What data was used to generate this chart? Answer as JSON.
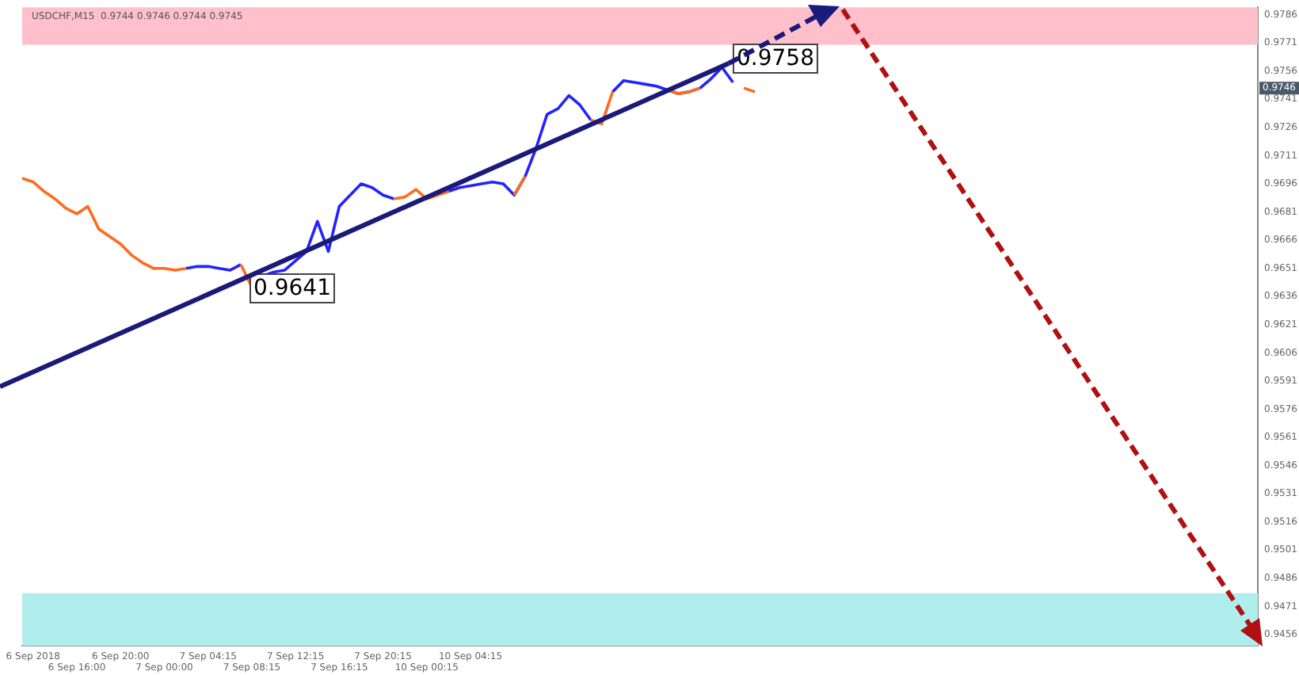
{
  "chart_data": {
    "type": "line",
    "title": "USDCHF,M15  0.9744 0.9746 0.9744 0.9745",
    "categories": [
      null,
      "6 Sep 2018",
      null,
      null,
      null,
      "6 Sep 16:00",
      null,
      null,
      null,
      "6 Sep 20:00",
      null,
      null,
      null,
      "7 Sep 00:00",
      null,
      null,
      null,
      "7 Sep 04:15",
      null,
      null,
      null,
      "7 Sep 08:15",
      null,
      null,
      null,
      "7 Sep 12:15",
      null,
      null,
      null,
      "7 Sep 16:15",
      null,
      null,
      null,
      "7 Sep 20:15",
      null,
      null,
      null,
      "10 Sep 00:15",
      null,
      null,
      null,
      "10 Sep 04:15",
      null,
      null,
      null,
      null,
      null,
      null,
      null,
      null,
      null,
      null,
      null,
      null,
      null,
      null,
      null,
      null,
      null,
      null,
      null,
      null,
      null,
      null,
      null,
      null,
      null,
      null,
      null,
      null,
      null,
      null,
      null,
      null,
      null,
      null,
      null,
      null,
      null,
      null,
      null,
      null,
      null,
      null,
      null,
      null,
      null,
      null,
      null,
      null,
      null,
      null,
      null,
      null,
      null,
      null,
      null,
      null,
      null,
      null,
      null,
      null,
      null,
      null,
      null,
      null,
      null,
      null,
      null,
      null,
      null,
      null,
      null,
      null
    ],
    "series": [
      {
        "color": "#ff6a1f",
        "values": [
          0.9699,
          0.9697,
          0.9692,
          0.9688,
          0.9683,
          0.968,
          0.9684,
          0.9672,
          0.9668,
          0.9664,
          0.9658,
          0.9654,
          0.9651,
          0.9651,
          0.965,
          0.9651,
          null,
          null,
          null,
          null,
          0.9653,
          0.9641,
          null,
          null,
          null,
          null,
          null,
          null,
          null,
          null,
          null,
          null,
          null,
          null,
          0.9688,
          0.9689,
          0.9693,
          0.9688,
          0.969,
          0.9692,
          null,
          null,
          null,
          null,
          null,
          0.969,
          0.97,
          null,
          null,
          null,
          null,
          null,
          0.973,
          0.9728,
          0.9745,
          null,
          null,
          null,
          null,
          0.9746,
          0.9744,
          0.9745,
          0.9747,
          null,
          null,
          null,
          0.9747,
          0.9745,
          null,
          null,
          null,
          null,
          null,
          null,
          null,
          null,
          null,
          null,
          null,
          null,
          null,
          null,
          null,
          null,
          null,
          null,
          null,
          null,
          null,
          null,
          null,
          null,
          null,
          null,
          null,
          null,
          null,
          null,
          null,
          null,
          null,
          null,
          null,
          null,
          null,
          null,
          null,
          null,
          null,
          null,
          null,
          null,
          null,
          null
        ]
      },
      {
        "color": "#2323ff",
        "values": [
          null,
          null,
          null,
          null,
          null,
          null,
          null,
          null,
          null,
          null,
          null,
          null,
          null,
          null,
          null,
          0.9651,
          0.9652,
          0.9652,
          0.9651,
          0.965,
          0.9653,
          null,
          0.9647,
          0.9649,
          0.965,
          0.9655,
          0.966,
          0.9676,
          0.966,
          0.9684,
          0.969,
          0.9696,
          0.9694,
          0.969,
          0.9688,
          null,
          null,
          null,
          null,
          0.9692,
          0.9694,
          0.9695,
          0.9696,
          0.9697,
          0.9696,
          0.969,
          0.97,
          0.9715,
          0.9733,
          0.9736,
          0.9743,
          0.9738,
          0.973,
          null,
          0.9745,
          0.9751,
          0.975,
          0.9749,
          0.9748,
          0.9746,
          0.9744,
          0.9745,
          0.9747,
          0.9752,
          0.9758,
          0.975,
          null,
          null,
          null,
          null,
          null,
          null,
          null,
          null,
          null,
          null,
          null,
          null,
          null,
          null,
          null,
          null,
          null,
          null,
          null,
          null,
          null,
          null,
          null,
          null,
          null,
          null,
          null,
          null,
          null,
          null,
          null,
          null,
          null,
          null,
          null,
          null,
          null,
          null,
          null,
          null,
          null,
          null,
          null,
          null,
          null,
          null,
          null,
          null
        ]
      }
    ],
    "ylim": [
      0.945,
      0.979
    ],
    "yticks": [
      0.9456,
      0.9471,
      0.9486,
      0.9501,
      0.9516,
      0.9531,
      0.9546,
      0.9561,
      0.9576,
      0.9591,
      0.9606,
      0.9621,
      0.9636,
      0.9651,
      0.9666,
      0.9681,
      0.9696,
      0.9711,
      0.9726,
      0.9741,
      0.9756,
      0.9771,
      0.9786
    ],
    "bands": [
      {
        "axis": "y",
        "from": 0.977,
        "to": 0.979,
        "color": "#ffc0cb"
      },
      {
        "axis": "y",
        "from": 0.945,
        "to": 0.9478,
        "color": "#b0eeee"
      }
    ],
    "annotations": [
      "0.9641",
      "0.9758",
      "0.9746"
    ],
    "grid": false
  }
}
